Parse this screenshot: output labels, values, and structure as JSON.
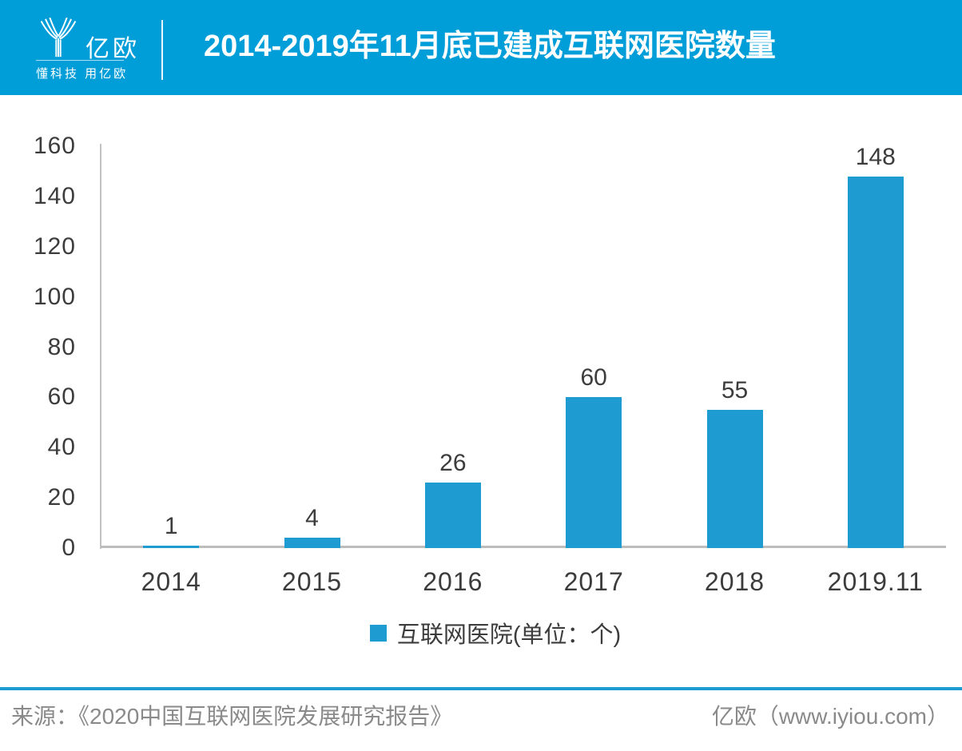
{
  "header": {
    "logo": {
      "brand": "亿欧",
      "slogan": "懂科技 用亿欧"
    },
    "title": "2014-2019年11月底已建成互联网医院数量"
  },
  "chart_data": {
    "type": "bar",
    "title": "2014-2019年11月底已建成互联网医院数量",
    "categories": [
      "2014",
      "2015",
      "2016",
      "2017",
      "2018",
      "2019.11"
    ],
    "values": [
      1,
      4,
      26,
      60,
      55,
      148
    ],
    "series": [
      {
        "name": "互联网医院",
        "values": [
          1,
          4,
          26,
          60,
          55,
          148
        ]
      }
    ],
    "legend_label": "互联网医院(单位：个)",
    "unit": "个",
    "xlabel": "",
    "ylabel": "",
    "ylim": [
      0,
      160
    ],
    "yticks": [
      0,
      20,
      40,
      60,
      80,
      100,
      120,
      140,
      160
    ],
    "grid": false,
    "legend_position": "bottom",
    "value_labels_shown": true,
    "bar_color": "#1E9CD2"
  },
  "footer": {
    "source": "来源：《2020中国互联网医院发展研究报告》",
    "brand": "亿欧（www.iyiou.com）"
  },
  "colors": {
    "header_bg": "#009ED9",
    "bar": "#1E9CD2",
    "axis_line": "#BFBFBF",
    "text_dark": "#3C3C3C",
    "footer_text": "#8A8A8A",
    "footer_line": "#1E9CD2",
    "header_text": "#FFFFFF"
  }
}
